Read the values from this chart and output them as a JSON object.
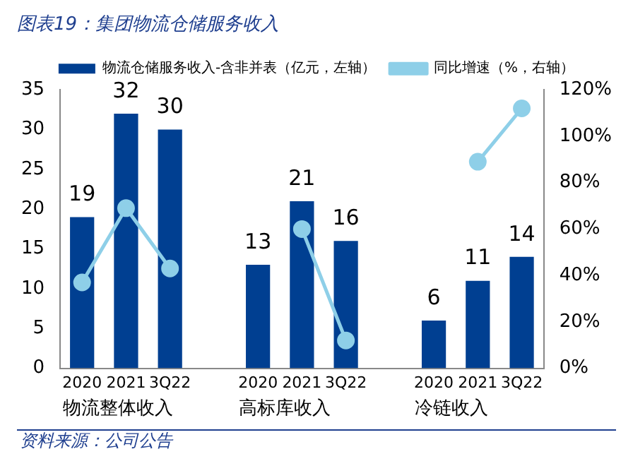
{
  "chart_data": {
    "type": "bar",
    "title": "图表19：集团物流仓储服务收入",
    "categories": [
      "2020",
      "2021",
      "3Q22",
      null,
      "2020",
      "2021",
      "3Q22",
      null,
      "2020",
      "2021",
      "3Q22"
    ],
    "series": [
      {
        "name": "物流仓储服务收入-含非并表（亿元，左轴）",
        "color": "#003f91",
        "values": [
          19,
          32,
          30,
          null,
          13,
          21,
          16,
          null,
          6,
          11,
          14
        ],
        "value_labels": [
          "19",
          "32",
          "30",
          null,
          "13",
          "21",
          "16",
          null,
          "6",
          "11",
          "14"
        ]
      },
      {
        "name": "同比增速（%，右轴）",
        "type": "line",
        "axis": "y2",
        "color": "#8ecfe8",
        "values": [
          37,
          69,
          43,
          null,
          null,
          60,
          12,
          null,
          null,
          89,
          112
        ]
      }
    ],
    "ylim": [
      0,
      35
    ],
    "yticks": [
      0,
      5,
      10,
      15,
      20,
      25,
      30,
      35
    ],
    "y2lim": [
      0,
      120
    ],
    "y2ticks": [
      {
        "value": 0,
        "label": "0%"
      },
      {
        "value": 20,
        "label": "20%"
      },
      {
        "value": 40,
        "label": "40%"
      },
      {
        "value": 60,
        "label": "60%"
      },
      {
        "value": 80,
        "label": "80%"
      },
      {
        "value": 100,
        "label": "100%"
      },
      {
        "value": 120,
        "label": "120%"
      }
    ],
    "annotations": [
      "物流整体收入",
      "高标库收入",
      "冷链收入",
      "资料来源：公司公告"
    ],
    "grid": false,
    "legend": "top",
    "marker": "circle",
    "line_style": "solid"
  }
}
